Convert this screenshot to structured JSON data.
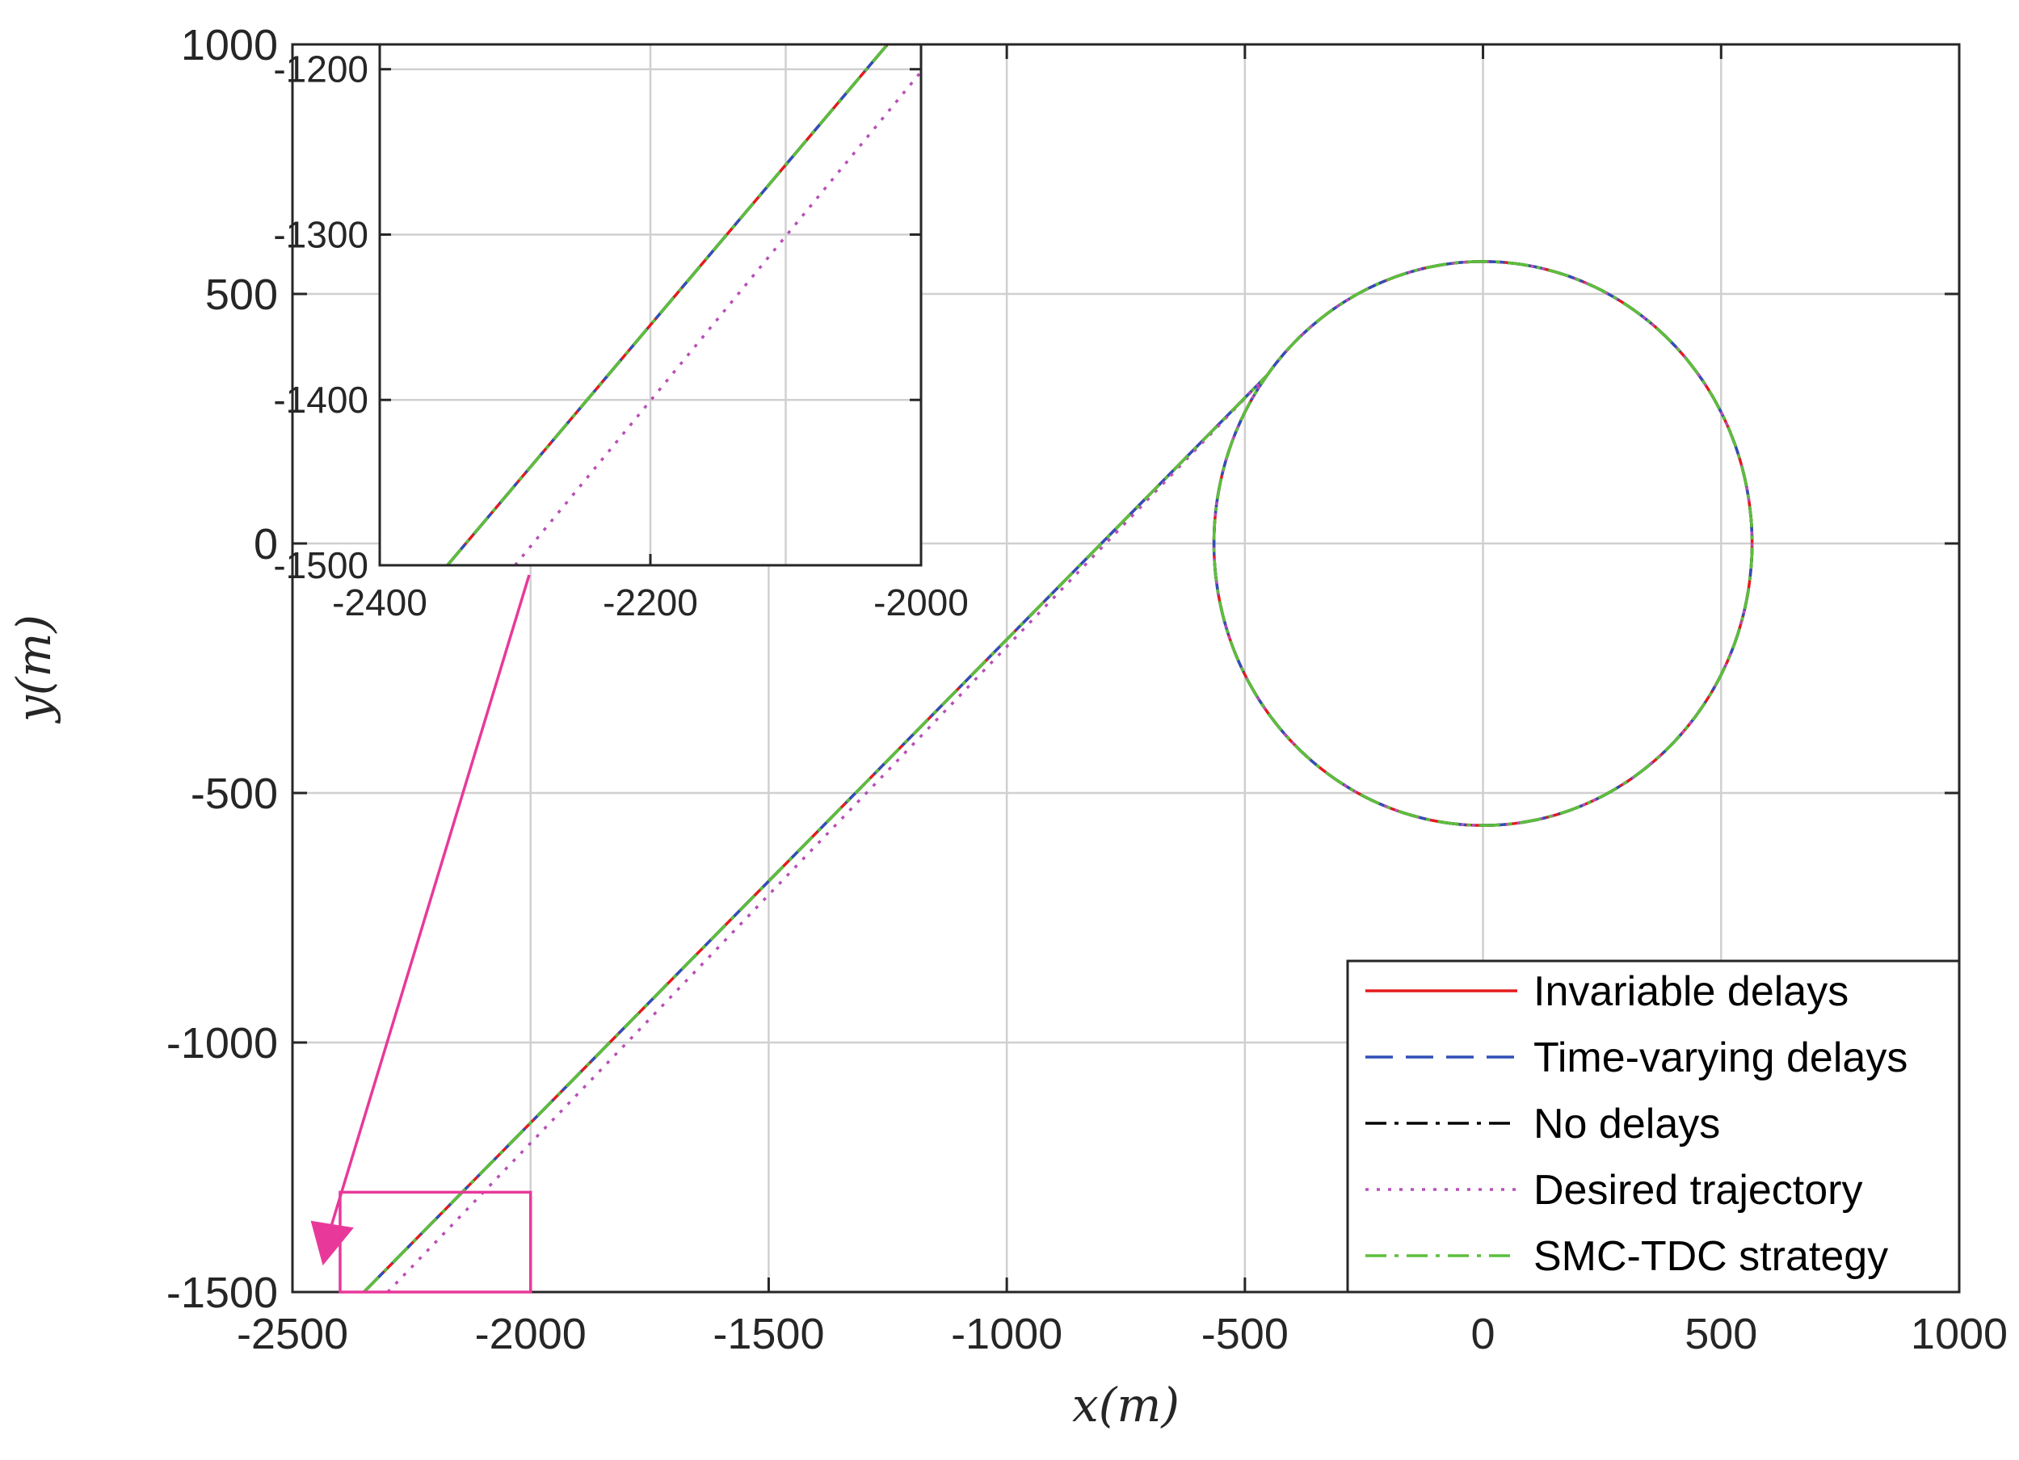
{
  "chart_data": {
    "type": "line",
    "title": "",
    "xlabel": "x(m)",
    "ylabel": "y(m)",
    "xlim": [
      -2500,
      1000
    ],
    "ylim": [
      -1500,
      1000
    ],
    "xticks": [
      -2500,
      -2000,
      -1500,
      -1000,
      -500,
      0,
      500,
      1000
    ],
    "yticks": [
      -1500,
      -1000,
      -500,
      0,
      500,
      1000
    ],
    "grid": true,
    "legend_position": "bottom-right",
    "series": [
      {
        "name": "Invariable delays",
        "color": "#e41a1c",
        "style": "solid"
      },
      {
        "name": "Time-varying delays",
        "color": "#2f4fb8",
        "style": "dashed"
      },
      {
        "name": "No delays",
        "color": "#000000",
        "style": "dashdot"
      },
      {
        "name": "Desired trajectory",
        "color": "#b84fb8",
        "style": "dotted"
      },
      {
        "name": "SMC-TDC strategy",
        "color": "#5cbf3c",
        "style": "dashdot"
      }
    ],
    "trajectory": {
      "start": [
        -2350,
        -1500
      ],
      "tangent_point": [
        -470,
        350
      ],
      "circle_center": [
        0,
        0
      ],
      "circle_radius": 565,
      "desired_start": [
        -2300,
        -1500
      ]
    },
    "inset": {
      "xlim": [
        -2400,
        -2000
      ],
      "ylim": [
        -1500,
        -1185
      ],
      "xticks": [
        -2400,
        -2200,
        -2000
      ],
      "yticks": [
        -1500,
        -1400,
        -1300,
        -1200
      ],
      "zoom_region": {
        "x": [
          -2400,
          -2000
        ],
        "y": [
          -1500,
          -1300
        ]
      }
    },
    "highlight_color": "#e8399a"
  }
}
